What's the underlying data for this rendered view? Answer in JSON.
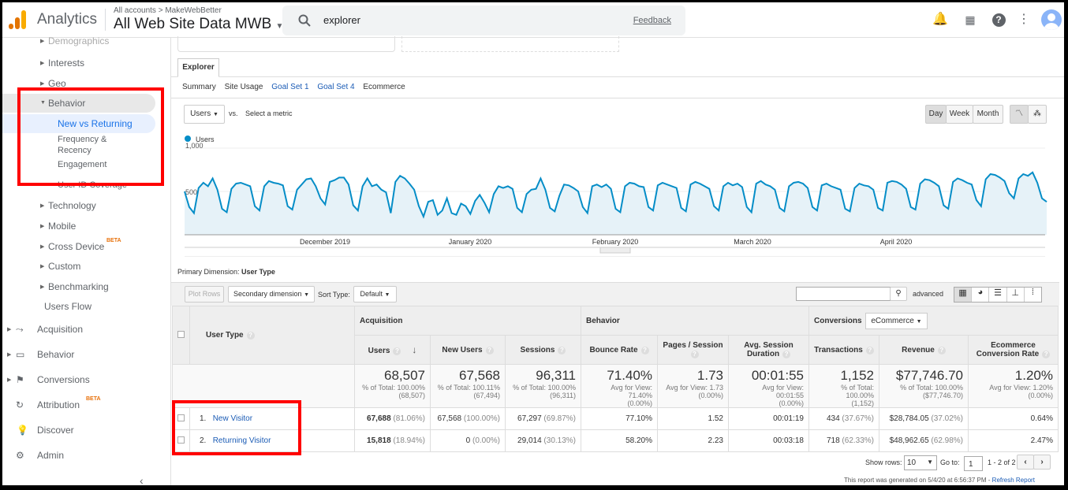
{
  "header": {
    "brand": "Analytics",
    "breadcrumb": "All accounts > MakeWebBetter",
    "property": "All Web Site Data MWB",
    "search_value": "explorer",
    "feedback": "Feedback"
  },
  "sidebar": {
    "items": [
      {
        "label": "Demographics"
      },
      {
        "label": "Interests"
      },
      {
        "label": "Geo"
      },
      {
        "label": "Behavior"
      },
      {
        "label": "New vs Returning"
      },
      {
        "label": "Frequency & Recency"
      },
      {
        "label": "Engagement"
      },
      {
        "label": "User ID Coverage"
      },
      {
        "label": "Technology"
      },
      {
        "label": "Mobile"
      },
      {
        "label": "Cross Device",
        "badge": "BETA"
      },
      {
        "label": "Custom"
      },
      {
        "label": "Benchmarking"
      },
      {
        "label": "Users Flow"
      }
    ],
    "sections": [
      {
        "label": "Acquisition"
      },
      {
        "label": "Behavior"
      },
      {
        "label": "Conversions"
      },
      {
        "label": "Attribution",
        "badge": "BETA"
      },
      {
        "label": "Discover"
      },
      {
        "label": "Admin"
      }
    ]
  },
  "explorer": {
    "tab": "Explorer",
    "subtabs": [
      "Summary",
      "Site Usage",
      "Goal Set 1",
      "Goal Set 4",
      "Ecommerce"
    ],
    "metric": "Users",
    "vs": "vs.",
    "select_metric": "Select a metric",
    "periods": [
      "Day",
      "Week",
      "Month"
    ],
    "active_period": "Day"
  },
  "chart_data": {
    "type": "area",
    "series": [
      {
        "name": "Users",
        "color": "#058dc7"
      }
    ],
    "yticks": [
      "1,000",
      "500"
    ],
    "ylim": [
      0,
      1000
    ],
    "x_start": "2019-11-01",
    "xtick_labels": [
      "December 2019",
      "January 2020",
      "February 2020",
      "March 2020",
      "April 2020"
    ],
    "values": [
      500,
      320,
      250,
      540,
      600,
      560,
      650,
      520,
      300,
      260,
      530,
      590,
      600,
      580,
      560,
      330,
      280,
      560,
      620,
      600,
      590,
      570,
      330,
      290,
      520,
      580,
      640,
      650,
      560,
      420,
      350,
      610,
      630,
      660,
      660,
      580,
      340,
      280,
      560,
      650,
      560,
      580,
      520,
      490,
      250,
      610,
      680,
      650,
      590,
      520,
      330,
      210,
      380,
      400,
      230,
      280,
      420,
      250,
      230,
      360,
      330,
      240,
      390,
      460,
      370,
      260,
      470,
      560,
      540,
      560,
      530,
      310,
      260,
      470,
      520,
      530,
      650,
      520,
      310,
      270,
      450,
      580,
      570,
      540,
      500,
      320,
      250,
      560,
      580,
      550,
      580,
      530,
      300,
      260,
      560,
      600,
      590,
      560,
      550,
      320,
      280,
      570,
      600,
      580,
      560,
      540,
      310,
      270,
      580,
      610,
      590,
      560,
      530,
      330,
      280,
      560,
      600,
      570,
      590,
      550,
      320,
      260,
      590,
      620,
      580,
      560,
      520,
      310,
      270,
      560,
      600,
      610,
      590,
      540,
      320,
      280,
      570,
      590,
      560,
      540,
      520,
      300,
      270,
      540,
      590,
      570,
      560,
      520,
      310,
      280,
      600,
      620,
      610,
      580,
      530,
      320,
      290,
      590,
      640,
      630,
      600,
      560,
      340,
      300,
      610,
      650,
      630,
      600,
      580,
      400,
      330,
      640,
      700,
      690,
      660,
      620,
      480,
      420,
      650,
      700,
      680,
      720,
      600,
      420,
      380
    ]
  },
  "table_controls": {
    "primary_dimension_label": "Primary Dimension:",
    "primary_dimension": "User Type",
    "plot_rows": "Plot Rows",
    "secondary_dimension": "Secondary dimension",
    "sort_type_label": "Sort Type:",
    "sort_type": "Default",
    "advanced": "advanced"
  },
  "table": {
    "groups": {
      "acquisition": "Acquisition",
      "behavior": "Behavior",
      "conversions": "Conversions",
      "conversions_select": "eCommerce"
    },
    "dimension_header": "User Type",
    "columns": [
      "Users",
      "New Users",
      "Sessions",
      "Bounce Rate",
      "Pages / Session",
      "Avg. Session Duration",
      "Transactions",
      "Revenue",
      "Ecommerce Conversion Rate"
    ],
    "totals": [
      {
        "value": "68,507",
        "sub1": "% of Total: 100.00%",
        "sub2": "(68,507)"
      },
      {
        "value": "67,568",
        "sub1": "% of Total: 100.11%",
        "sub2": "(67,494)"
      },
      {
        "value": "96,311",
        "sub1": "% of Total: 100.00%",
        "sub2": "(96,311)"
      },
      {
        "value": "71.40%",
        "sub1": "Avg for View: 71.40%",
        "sub2": "(0.00%)"
      },
      {
        "value": "1.73",
        "sub1": "Avg for View: 1.73",
        "sub2": "(0.00%)"
      },
      {
        "value": "00:01:55",
        "sub1": "Avg for View: 00:01:55",
        "sub2": "(0.00%)"
      },
      {
        "value": "1,152",
        "sub1": "% of Total: 100.00%",
        "sub2": "(1,152)"
      },
      {
        "value": "$77,746.70",
        "sub1": "% of Total: 100.00%",
        "sub2": "($77,746.70)"
      },
      {
        "value": "1.20%",
        "sub1": "Avg for View: 1.20%",
        "sub2": "(0.00%)"
      }
    ],
    "rows": [
      {
        "index": "1.",
        "name": "New Visitor",
        "cells": [
          [
            "67,688",
            "(81.06%)"
          ],
          [
            "67,568",
            "(100.00%)"
          ],
          [
            "67,297",
            "(69.87%)"
          ],
          [
            "77.10%",
            ""
          ],
          [
            "1.52",
            ""
          ],
          [
            "00:01:19",
            ""
          ],
          [
            "434",
            "(37.67%)"
          ],
          [
            "$28,784.05",
            "(37.02%)"
          ],
          [
            "0.64%",
            ""
          ]
        ]
      },
      {
        "index": "2.",
        "name": "Returning Visitor",
        "cells": [
          [
            "15,818",
            "(18.94%)"
          ],
          [
            "0",
            "(0.00%)"
          ],
          [
            "29,014",
            "(30.13%)"
          ],
          [
            "58.20%",
            ""
          ],
          [
            "2.23",
            ""
          ],
          [
            "00:03:18",
            ""
          ],
          [
            "718",
            "(62.33%)"
          ],
          [
            "$48,962.65",
            "(62.98%)"
          ],
          [
            "2.47%",
            ""
          ]
        ]
      }
    ]
  },
  "pagination": {
    "show_rows_label": "Show rows:",
    "show_rows": "10",
    "goto_label": "Go to:",
    "goto": "1",
    "range": "1 - 2 of 2"
  },
  "footer": {
    "generated": "This report was generated on 5/4/20 at 6:56:37 PM - ",
    "refresh": "Refresh Report"
  }
}
